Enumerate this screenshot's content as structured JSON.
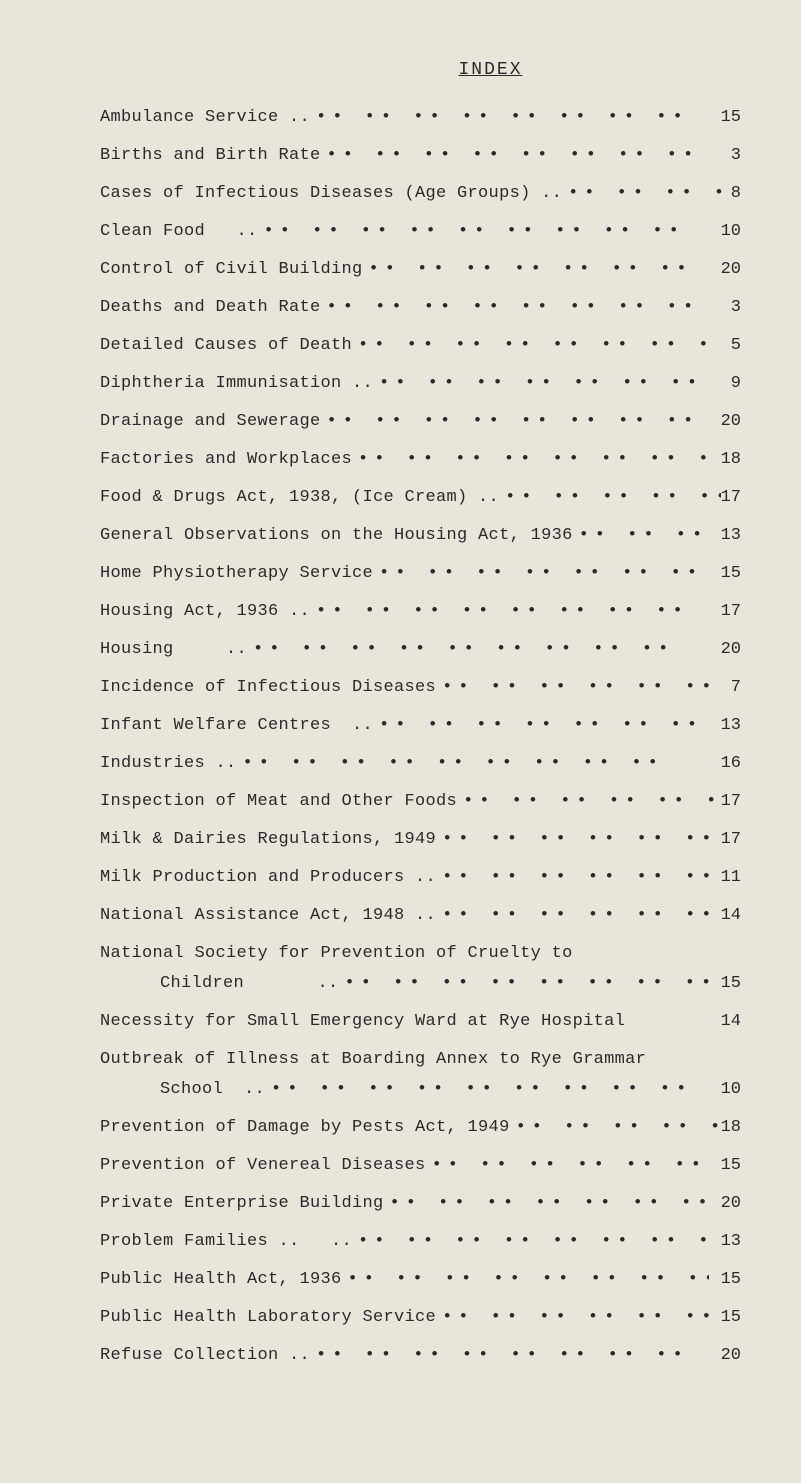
{
  "title": "INDEX",
  "colors": {
    "background": "#e8e5db",
    "text": "#2a2a2a"
  },
  "leader_pattern": "••   ••   ••   ••   ••   ••   ••   ••   ••",
  "entries": [
    {
      "label": "Ambulance Service ..",
      "page": "15"
    },
    {
      "label": "Births and Birth Rate",
      "page": "3"
    },
    {
      "label": "Cases of Infectious Diseases (Age Groups) ..",
      "page": "8"
    },
    {
      "label": "Clean Food   ..",
      "page": "10"
    },
    {
      "label": "Control of Civil Building",
      "page": "20"
    },
    {
      "label": "Deaths and Death Rate",
      "page": "3"
    },
    {
      "label": "Detailed Causes of Death",
      "page": "5"
    },
    {
      "label": "Diphtheria Immunisation ..",
      "page": "9"
    },
    {
      "label": "Drainage and Sewerage",
      "page": "20"
    },
    {
      "label": "Factories and Workplaces",
      "page": "18"
    },
    {
      "label": "Food & Drugs Act, 1938, (Ice Cream) ..",
      "page": "17"
    },
    {
      "label": "General Observations on the Housing Act, 1936",
      "page": "13"
    },
    {
      "label": "Home Physiotherapy Service",
      "page": "15"
    },
    {
      "label": "Housing Act, 1936 ..",
      "page": "17"
    },
    {
      "label": "Housing     ..",
      "page": "20"
    },
    {
      "label": "Incidence of Infectious Diseases",
      "page": "7"
    },
    {
      "label": "Infant Welfare Centres  ..",
      "page": "13"
    },
    {
      "label": "Industries ..",
      "page": "16"
    },
    {
      "label": "Inspection of Meat and Other Foods",
      "page": "17"
    },
    {
      "label": "Milk & Dairies Regulations, 1949",
      "page": "17"
    },
    {
      "label": "Milk Production and Producers ..",
      "page": "11"
    },
    {
      "label": "National Assistance Act, 1948 ..",
      "page": "14"
    },
    {
      "label": "National Society for Prevention of Cruelty to",
      "page": "",
      "no_leader": true
    },
    {
      "label": "Children       ..",
      "page": "15",
      "indent": true
    },
    {
      "label": "Necessity for Small Emergency Ward at Rye Hospital",
      "page": "14",
      "short_leader": true
    },
    {
      "label": "Outbreak of Illness at Boarding Annex to Rye Grammar",
      "page": "",
      "no_leader": true
    },
    {
      "label": "School  ..",
      "page": "10",
      "indent": true
    },
    {
      "label": "Prevention of Damage by Pests Act, 1949",
      "page": "18"
    },
    {
      "label": "Prevention of Venereal Diseases",
      "page": "15"
    },
    {
      "label": "Private Enterprise Building",
      "page": "20"
    },
    {
      "label": "Problem Families ..   ..",
      "page": "13"
    },
    {
      "label": "Public Health Act, 1936",
      "page": "15"
    },
    {
      "label": "Public Health Laboratory Service",
      "page": "15"
    },
    {
      "label": "Refuse Collection ..",
      "page": "20"
    }
  ]
}
